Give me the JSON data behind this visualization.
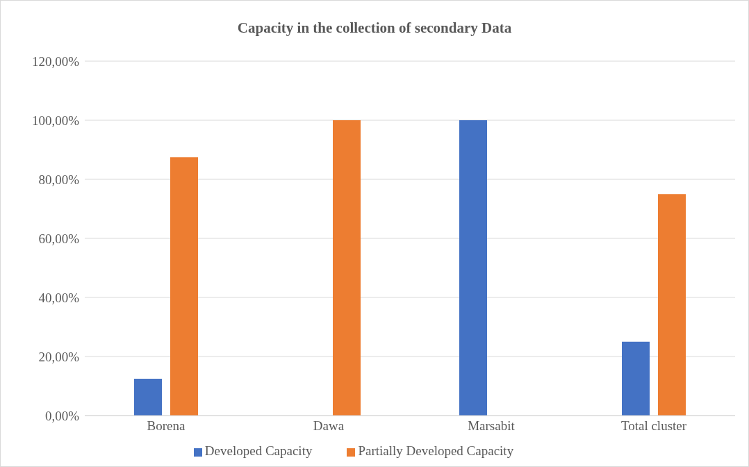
{
  "chart_data": {
    "type": "bar",
    "title": "Capacity in the collection of secondary Data",
    "categories": [
      "Borena",
      "Dawa",
      "Marsabit",
      "Total cluster"
    ],
    "series": [
      {
        "name": "Developed Capacity",
        "color": "#4472c4",
        "values": [
          12.5,
          0,
          100,
          25
        ]
      },
      {
        "name": "Partially Developed Capacity",
        "color": "#ed7d31",
        "values": [
          87.5,
          100,
          0,
          75
        ]
      }
    ],
    "ylim": [
      0,
      120
    ],
    "yticks": [
      {
        "value": 0,
        "label": "0,00%"
      },
      {
        "value": 20,
        "label": "20,00%"
      },
      {
        "value": 40,
        "label": "40,00%"
      },
      {
        "value": 60,
        "label": "60,00%"
      },
      {
        "value": 80,
        "label": "80,00%"
      },
      {
        "value": 100,
        "label": "100,00%"
      },
      {
        "value": 120,
        "label": "120,00%"
      }
    ],
    "grid": "y",
    "legend": "bottom"
  }
}
